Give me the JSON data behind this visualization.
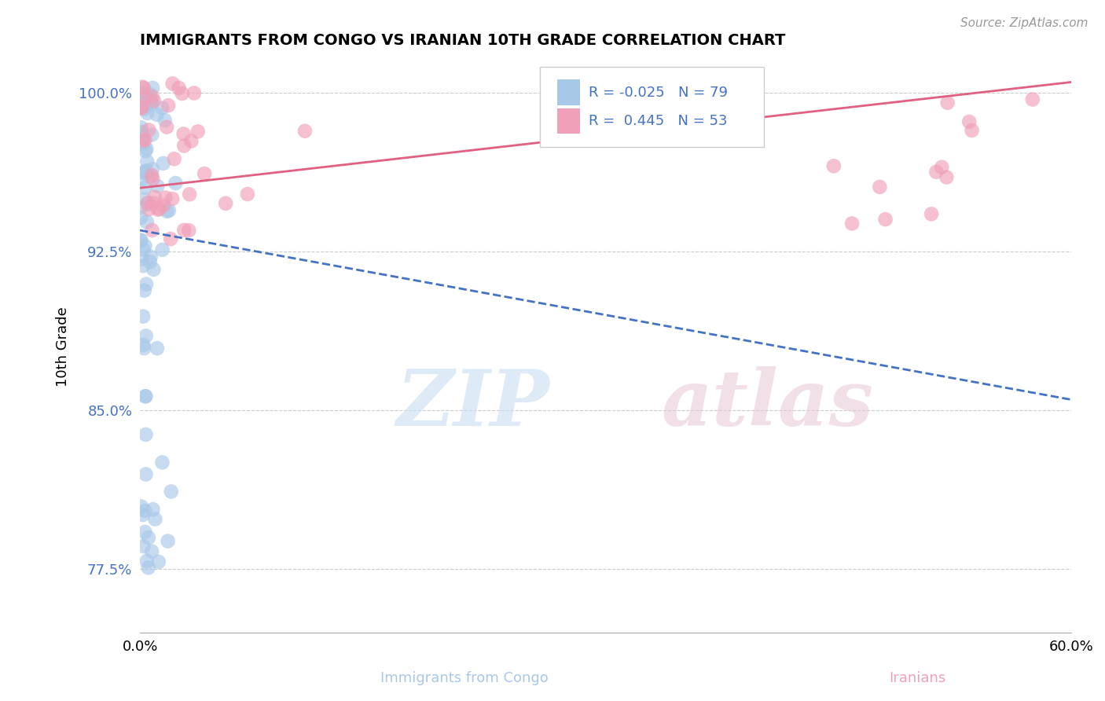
{
  "title": "IMMIGRANTS FROM CONGO VS IRANIAN 10TH GRADE CORRELATION CHART",
  "source": "Source: ZipAtlas.com",
  "xlabel_center": "Immigrants from Congo",
  "xlabel_right": "Iranians",
  "ylabel": "10th Grade",
  "xlim": [
    0.0,
    0.6
  ],
  "ylim": [
    0.745,
    1.015
  ],
  "yticks": [
    0.775,
    0.85,
    0.925,
    1.0
  ],
  "ytick_labels": [
    "77.5%",
    "85.0%",
    "92.5%",
    "100.0%"
  ],
  "xticks": [
    0.0,
    0.6
  ],
  "xtick_labels": [
    "0.0%",
    "60.0%"
  ],
  "R_congo": -0.025,
  "N_congo": 79,
  "R_iran": 0.445,
  "N_iran": 53,
  "color_congo": "#a8c8e8",
  "color_iran": "#f0a0b8",
  "line_color_congo": "#4472c4",
  "line_color_iran": "#e06080",
  "congo_trend_x": [
    0.0,
    0.6
  ],
  "congo_trend_y": [
    0.935,
    0.855
  ],
  "iran_trend_x": [
    0.0,
    0.6
  ],
  "iran_trend_y": [
    0.955,
    1.005
  ]
}
